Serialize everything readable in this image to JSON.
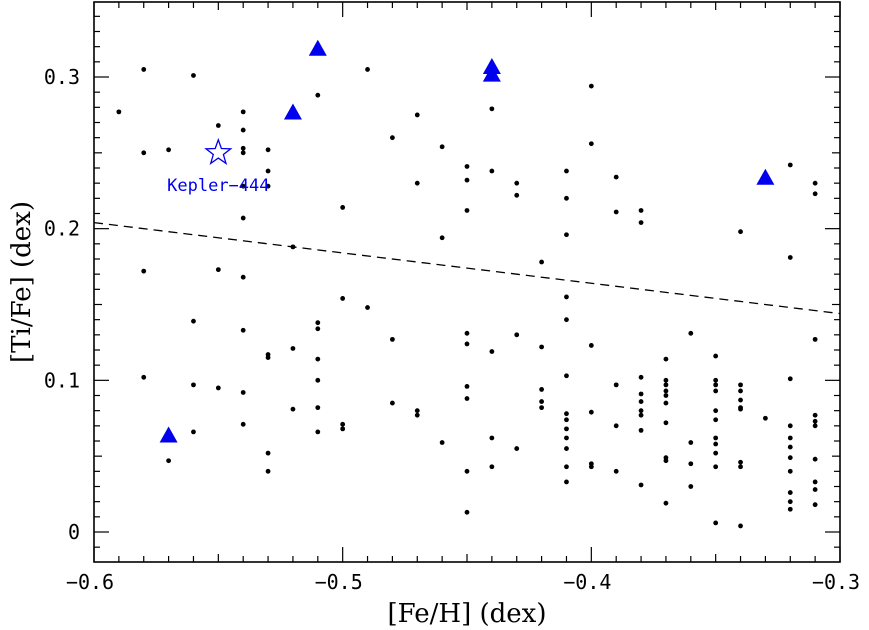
{
  "chart_data": {
    "type": "scatter",
    "title": "",
    "xlabel": "[Fe/H] (dex)",
    "ylabel": "[Ti/Fe] (dex)",
    "xlim": [
      -0.6,
      -0.3
    ],
    "ylim": [
      -0.02,
      0.35
    ],
    "grid": false,
    "x_ticks": [
      -0.6,
      -0.5,
      -0.4,
      -0.3
    ],
    "x_tick_labels": [
      "−0.6",
      "−0.5",
      "−0.4",
      "−0.3"
    ],
    "y_ticks": [
      0,
      0.1,
      0.2,
      0.3
    ],
    "y_tick_labels": [
      "0",
      "0.1",
      "0.2",
      "0.3"
    ],
    "colors": {
      "accent": "#0000ee",
      "points": "#000000"
    },
    "series": [
      {
        "marker": "dot",
        "points": [
          [
            -0.59,
            0.277
          ],
          [
            -0.58,
            0.305
          ],
          [
            -0.58,
            0.25
          ],
          [
            -0.58,
            0.172
          ],
          [
            -0.58,
            0.102
          ],
          [
            -0.57,
            0.252
          ],
          [
            -0.57,
            0.047
          ],
          [
            -0.56,
            0.301
          ],
          [
            -0.56,
            0.139
          ],
          [
            -0.56,
            0.097
          ],
          [
            -0.56,
            0.066
          ],
          [
            -0.55,
            0.268
          ],
          [
            -0.55,
            0.173
          ],
          [
            -0.55,
            0.095
          ],
          [
            -0.54,
            0.277
          ],
          [
            -0.54,
            0.265
          ],
          [
            -0.54,
            0.253
          ],
          [
            -0.54,
            0.25
          ],
          [
            -0.54,
            0.228
          ],
          [
            -0.54,
            0.207
          ],
          [
            -0.54,
            0.168
          ],
          [
            -0.54,
            0.133
          ],
          [
            -0.54,
            0.092
          ],
          [
            -0.54,
            0.071
          ],
          [
            -0.53,
            0.252
          ],
          [
            -0.53,
            0.238
          ],
          [
            -0.53,
            0.228
          ],
          [
            -0.53,
            0.117
          ],
          [
            -0.53,
            0.115
          ],
          [
            -0.53,
            0.052
          ],
          [
            -0.53,
            0.04
          ],
          [
            -0.52,
            0.188
          ],
          [
            -0.52,
            0.121
          ],
          [
            -0.52,
            0.081
          ],
          [
            -0.51,
            0.288
          ],
          [
            -0.51,
            0.138
          ],
          [
            -0.51,
            0.134
          ],
          [
            -0.51,
            0.114
          ],
          [
            -0.51,
            0.1
          ],
          [
            -0.51,
            0.082
          ],
          [
            -0.51,
            0.066
          ],
          [
            -0.5,
            0.214
          ],
          [
            -0.5,
            0.154
          ],
          [
            -0.5,
            0.071
          ],
          [
            -0.5,
            0.068
          ],
          [
            -0.49,
            0.305
          ],
          [
            -0.49,
            0.148
          ],
          [
            -0.48,
            0.26
          ],
          [
            -0.48,
            0.127
          ],
          [
            -0.48,
            0.085
          ],
          [
            -0.47,
            0.275
          ],
          [
            -0.47,
            0.23
          ],
          [
            -0.47,
            0.08
          ],
          [
            -0.47,
            0.077
          ],
          [
            -0.46,
            0.254
          ],
          [
            -0.46,
            0.194
          ],
          [
            -0.46,
            0.059
          ],
          [
            -0.45,
            0.241
          ],
          [
            -0.45,
            0.232
          ],
          [
            -0.45,
            0.212
          ],
          [
            -0.45,
            0.131
          ],
          [
            -0.45,
            0.124
          ],
          [
            -0.45,
            0.096
          ],
          [
            -0.45,
            0.088
          ],
          [
            -0.45,
            0.04
          ],
          [
            -0.45,
            0.013
          ],
          [
            -0.44,
            0.279
          ],
          [
            -0.44,
            0.238
          ],
          [
            -0.44,
            0.119
          ],
          [
            -0.44,
            0.062
          ],
          [
            -0.44,
            0.043
          ],
          [
            -0.43,
            0.23
          ],
          [
            -0.43,
            0.222
          ],
          [
            -0.43,
            0.13
          ],
          [
            -0.43,
            0.055
          ],
          [
            -0.42,
            0.178
          ],
          [
            -0.42,
            0.122
          ],
          [
            -0.42,
            0.094
          ],
          [
            -0.42,
            0.086
          ],
          [
            -0.42,
            0.082
          ],
          [
            -0.41,
            0.238
          ],
          [
            -0.41,
            0.22
          ],
          [
            -0.41,
            0.196
          ],
          [
            -0.41,
            0.155
          ],
          [
            -0.41,
            0.14
          ],
          [
            -0.41,
            0.103
          ],
          [
            -0.41,
            0.078
          ],
          [
            -0.41,
            0.074
          ],
          [
            -0.41,
            0.068
          ],
          [
            -0.41,
            0.062
          ],
          [
            -0.41,
            0.055
          ],
          [
            -0.41,
            0.043
          ],
          [
            -0.41,
            0.033
          ],
          [
            -0.4,
            0.294
          ],
          [
            -0.4,
            0.256
          ],
          [
            -0.4,
            0.123
          ],
          [
            -0.4,
            0.079
          ],
          [
            -0.4,
            0.045
          ],
          [
            -0.4,
            0.043
          ],
          [
            -0.39,
            0.234
          ],
          [
            -0.39,
            0.211
          ],
          [
            -0.39,
            0.097
          ],
          [
            -0.39,
            0.07
          ],
          [
            -0.39,
            0.04
          ],
          [
            -0.38,
            0.212
          ],
          [
            -0.38,
            0.204
          ],
          [
            -0.38,
            0.102
          ],
          [
            -0.38,
            0.091
          ],
          [
            -0.38,
            0.086
          ],
          [
            -0.38,
            0.08
          ],
          [
            -0.38,
            0.077
          ],
          [
            -0.38,
            0.067
          ],
          [
            -0.38,
            0.031
          ],
          [
            -0.37,
            0.114
          ],
          [
            -0.37,
            0.1
          ],
          [
            -0.37,
            0.097
          ],
          [
            -0.37,
            0.093
          ],
          [
            -0.37,
            0.09
          ],
          [
            -0.37,
            0.085
          ],
          [
            -0.37,
            0.072
          ],
          [
            -0.37,
            0.049
          ],
          [
            -0.37,
            0.047
          ],
          [
            -0.37,
            0.019
          ],
          [
            -0.36,
            0.131
          ],
          [
            -0.36,
            0.059
          ],
          [
            -0.36,
            0.045
          ],
          [
            -0.36,
            0.03
          ],
          [
            -0.35,
            0.116
          ],
          [
            -0.35,
            0.1
          ],
          [
            -0.35,
            0.097
          ],
          [
            -0.35,
            0.093
          ],
          [
            -0.35,
            0.08
          ],
          [
            -0.35,
            0.074
          ],
          [
            -0.35,
            0.062
          ],
          [
            -0.35,
            0.058
          ],
          [
            -0.35,
            0.052
          ],
          [
            -0.35,
            0.043
          ],
          [
            -0.35,
            0.006
          ],
          [
            -0.34,
            0.198
          ],
          [
            -0.34,
            0.097
          ],
          [
            -0.34,
            0.093
          ],
          [
            -0.34,
            0.087
          ],
          [
            -0.34,
            0.082
          ],
          [
            -0.34,
            0.081
          ],
          [
            -0.34,
            0.046
          ],
          [
            -0.34,
            0.043
          ],
          [
            -0.34,
            0.004
          ],
          [
            -0.33,
            0.075
          ],
          [
            -0.32,
            0.242
          ],
          [
            -0.32,
            0.181
          ],
          [
            -0.32,
            0.101
          ],
          [
            -0.32,
            0.07
          ],
          [
            -0.32,
            0.062
          ],
          [
            -0.32,
            0.056
          ],
          [
            -0.32,
            0.049
          ],
          [
            -0.32,
            0.04
          ],
          [
            -0.32,
            0.026
          ],
          [
            -0.32,
            0.02
          ],
          [
            -0.32,
            0.015
          ],
          [
            -0.31,
            0.23
          ],
          [
            -0.31,
            0.223
          ],
          [
            -0.31,
            0.127
          ],
          [
            -0.31,
            0.077
          ],
          [
            -0.31,
            0.073
          ],
          [
            -0.31,
            0.07
          ],
          [
            -0.31,
            0.048
          ],
          [
            -0.31,
            0.033
          ],
          [
            -0.31,
            0.028
          ],
          [
            -0.31,
            0.018
          ]
        ]
      },
      {
        "marker": "filled-triangle",
        "points": [
          [
            -0.57,
            0.063
          ],
          [
            -0.52,
            0.276
          ],
          [
            -0.51,
            0.318
          ],
          [
            -0.44,
            0.306
          ],
          [
            -0.44,
            0.301
          ],
          [
            -0.33,
            0.233
          ]
        ]
      },
      {
        "marker": "open-star",
        "points": [
          [
            -0.55,
            0.25
          ]
        ]
      }
    ],
    "trend_line": {
      "style": "dashed",
      "points": [
        [
          -0.6,
          0.204
        ],
        [
          -0.3,
          0.144
        ]
      ]
    },
    "annotations": [
      {
        "text": "Kepler−444",
        "x": -0.55,
        "y": 0.25
      }
    ]
  }
}
